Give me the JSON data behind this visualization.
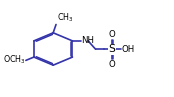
{
  "bg_color": "#ffffff",
  "bond_color": "#3333aa",
  "text_color": "#000000",
  "line_width": 1.2,
  "font_size": 6.2,
  "figsize": [
    1.74,
    0.97
  ],
  "dpi": 100,
  "xlim": [
    0.0,
    1.18
  ],
  "ylim": [
    0.05,
    0.95
  ]
}
